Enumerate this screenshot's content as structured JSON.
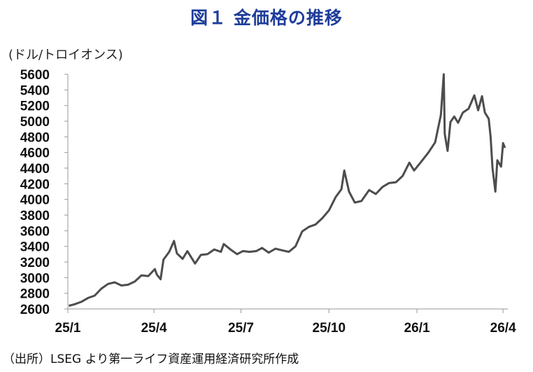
{
  "title": "図１ 金価格の推移",
  "source_note": "（出所）LSEG より第一ライフ資産運用経済研究所作成",
  "chart_data": {
    "type": "line",
    "title": "図１ 金価格の推移",
    "ylabel": "(ドル/トロイオンス)",
    "xlabel": "",
    "ylim": [
      2600,
      5600
    ],
    "y_ticks": [
      2600,
      2800,
      3000,
      3200,
      3400,
      3600,
      3800,
      4000,
      4200,
      4400,
      4600,
      4800,
      5000,
      5200,
      5400,
      5600
    ],
    "x_tick_labels": [
      "25/1",
      "25/4",
      "25/7",
      "25/10",
      "26/1",
      "26/4"
    ],
    "grid": false,
    "line_color": "#4d4d4d",
    "series": [
      {
        "x": [
          "2025-01-02",
          "2025-01-08",
          "2025-01-15",
          "2025-01-22",
          "2025-01-29",
          "2025-02-05",
          "2025-02-12",
          "2025-02-19",
          "2025-02-26",
          "2025-03-05",
          "2025-03-12",
          "2025-03-19",
          "2025-03-26",
          "2025-04-02",
          "2025-04-04",
          "2025-04-08",
          "2025-04-11",
          "2025-04-17",
          "2025-04-22",
          "2025-04-25",
          "2025-05-01",
          "2025-05-06",
          "2025-05-14",
          "2025-05-20",
          "2025-05-27",
          "2025-06-03",
          "2025-06-10",
          "2025-06-13",
          "2025-06-20",
          "2025-06-27",
          "2025-07-03",
          "2025-07-10",
          "2025-07-17",
          "2025-07-23",
          "2025-07-30",
          "2025-08-06",
          "2025-08-13",
          "2025-08-20",
          "2025-08-27",
          "2025-09-03",
          "2025-09-10",
          "2025-09-17",
          "2025-09-24",
          "2025-10-01",
          "2025-10-08",
          "2025-10-14",
          "2025-10-17",
          "2025-10-22",
          "2025-10-28",
          "2025-11-04",
          "2025-11-12",
          "2025-11-19",
          "2025-11-26",
          "2025-12-03",
          "2025-12-10",
          "2025-12-17",
          "2025-12-24",
          "2025-12-29",
          "2026-01-06",
          "2026-01-13",
          "2026-01-20",
          "2026-01-26",
          "2026-01-29",
          "2026-01-30",
          "2026-02-02",
          "2026-02-05",
          "2026-02-09",
          "2026-02-13",
          "2026-02-18",
          "2026-02-24",
          "2026-03-02",
          "2026-03-06",
          "2026-03-10",
          "2026-03-13",
          "2026-03-17",
          "2026-03-19",
          "2026-03-21",
          "2026-03-24",
          "2026-03-26",
          "2026-03-30",
          "2026-04-01",
          "2026-04-03"
        ],
        "values": [
          2640,
          2660,
          2690,
          2740,
          2770,
          2860,
          2920,
          2940,
          2900,
          2910,
          2950,
          3030,
          3020,
          3110,
          3040,
          2980,
          3230,
          3330,
          3470,
          3310,
          3240,
          3340,
          3180,
          3290,
          3300,
          3360,
          3330,
          3430,
          3360,
          3300,
          3340,
          3330,
          3340,
          3380,
          3320,
          3370,
          3350,
          3330,
          3400,
          3590,
          3650,
          3680,
          3760,
          3860,
          4030,
          4130,
          4370,
          4100,
          3960,
          3980,
          4120,
          4070,
          4160,
          4210,
          4220,
          4300,
          4470,
          4370,
          4490,
          4600,
          4730,
          5080,
          5600,
          4840,
          4620,
          4990,
          5060,
          4980,
          5110,
          5160,
          5330,
          5140,
          5320,
          5110,
          5030,
          4800,
          4400,
          4100,
          4500,
          4420,
          4720,
          4660
        ]
      }
    ]
  }
}
